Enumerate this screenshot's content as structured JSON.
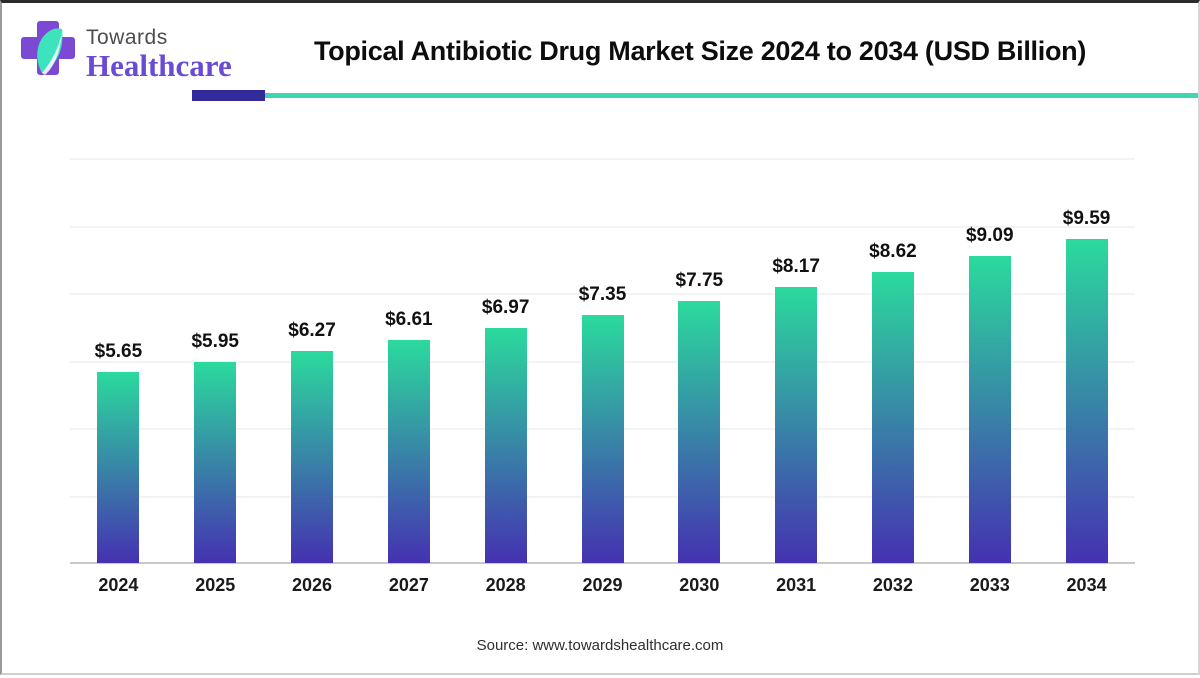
{
  "header": {
    "logo": {
      "line1": "Towards",
      "line2": "Healthcare",
      "cross_color": "#7b49d3",
      "leaf_color": "#3de3bc",
      "text1_color": "#4d4d4d",
      "text2_color": "#6a4bd4"
    },
    "title": "Topical Antibiotic Drug Market Size 2024 to 2034 (USD Billion)",
    "divider": {
      "purple": "#332a9e",
      "teal": "#41d6b2"
    }
  },
  "chart_data": {
    "type": "bar",
    "title": "Topical Antibiotic Drug Market Size 2024 to 2034 (USD Billion)",
    "categories": [
      "2024",
      "2025",
      "2026",
      "2027",
      "2028",
      "2029",
      "2030",
      "2031",
      "2032",
      "2033",
      "2034"
    ],
    "values": [
      5.65,
      5.95,
      6.27,
      6.61,
      6.97,
      7.35,
      7.75,
      8.17,
      8.62,
      9.09,
      9.59
    ],
    "labels": [
      "$5.65",
      "$5.95",
      "$6.27",
      "$6.61",
      "$6.97",
      "$7.35",
      "$7.75",
      "$8.17",
      "$8.62",
      "$9.09",
      "$9.59"
    ],
    "value_prefix": "$",
    "xlabel": "",
    "ylabel": "",
    "ylim": [
      0,
      12
    ],
    "gridline_step": 2,
    "grid": true,
    "legend": "none",
    "bar_gradient_top": "#2bda9d",
    "bar_gradient_bottom": "#4531b1",
    "gridline_color": "#f3f3f3",
    "axis_color": "#c9c9c9"
  },
  "footer": {
    "source": "Source: www.towardshealthcare.com"
  }
}
